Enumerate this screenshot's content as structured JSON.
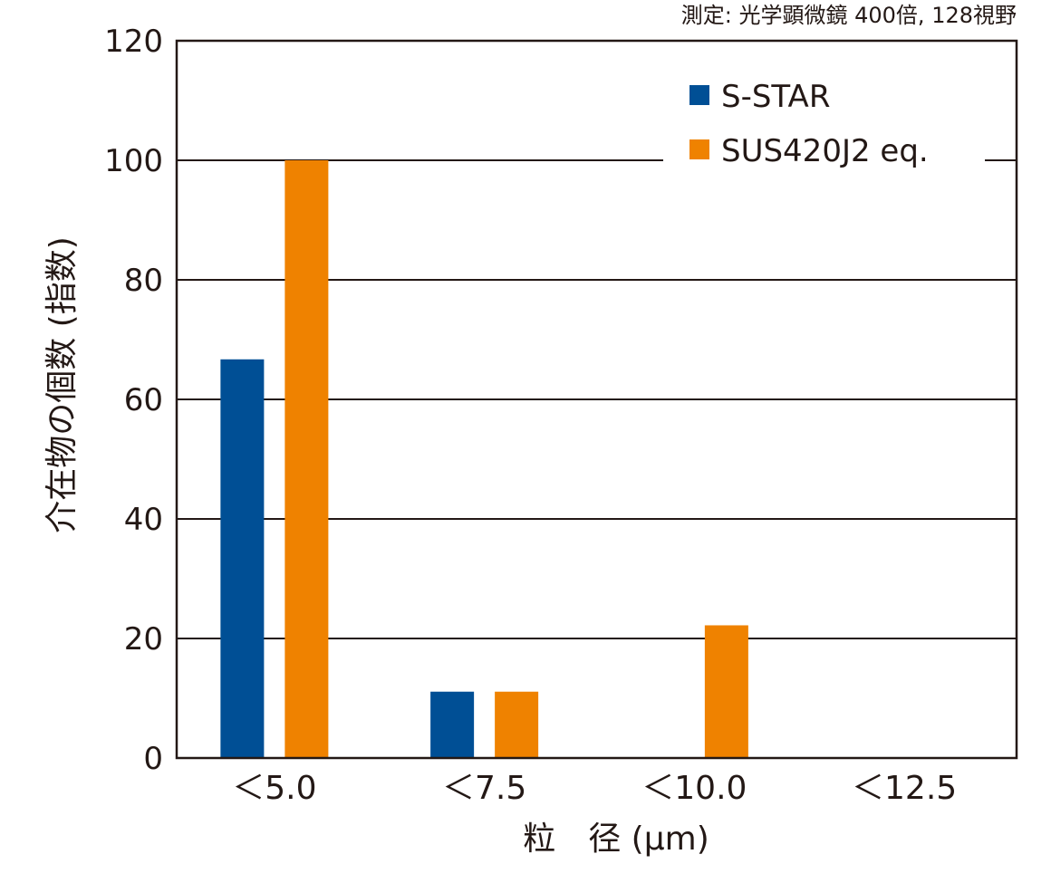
{
  "chart_data": {
    "type": "bar",
    "note": "測定: 光学顕微鏡 400倍, 128視野",
    "xlabel": "粒　径 (μm)",
    "ylabel": "介在物の個数 (指数)",
    "categories": [
      "＜5.0",
      "＜7.5",
      "＜10.0",
      "＜12.5"
    ],
    "ylim": [
      0,
      120
    ],
    "yticks": [
      0,
      20,
      40,
      60,
      80,
      100,
      120
    ],
    "grid": true,
    "legend_position": "top-right",
    "series": [
      {
        "name": "S-STAR",
        "color": "#004f95",
        "values": [
          66.7,
          11.1,
          0,
          0
        ]
      },
      {
        "name": "SUS420J2 eq.",
        "color": "#ef8200",
        "values": [
          100,
          11.1,
          22.2,
          0
        ]
      }
    ]
  }
}
